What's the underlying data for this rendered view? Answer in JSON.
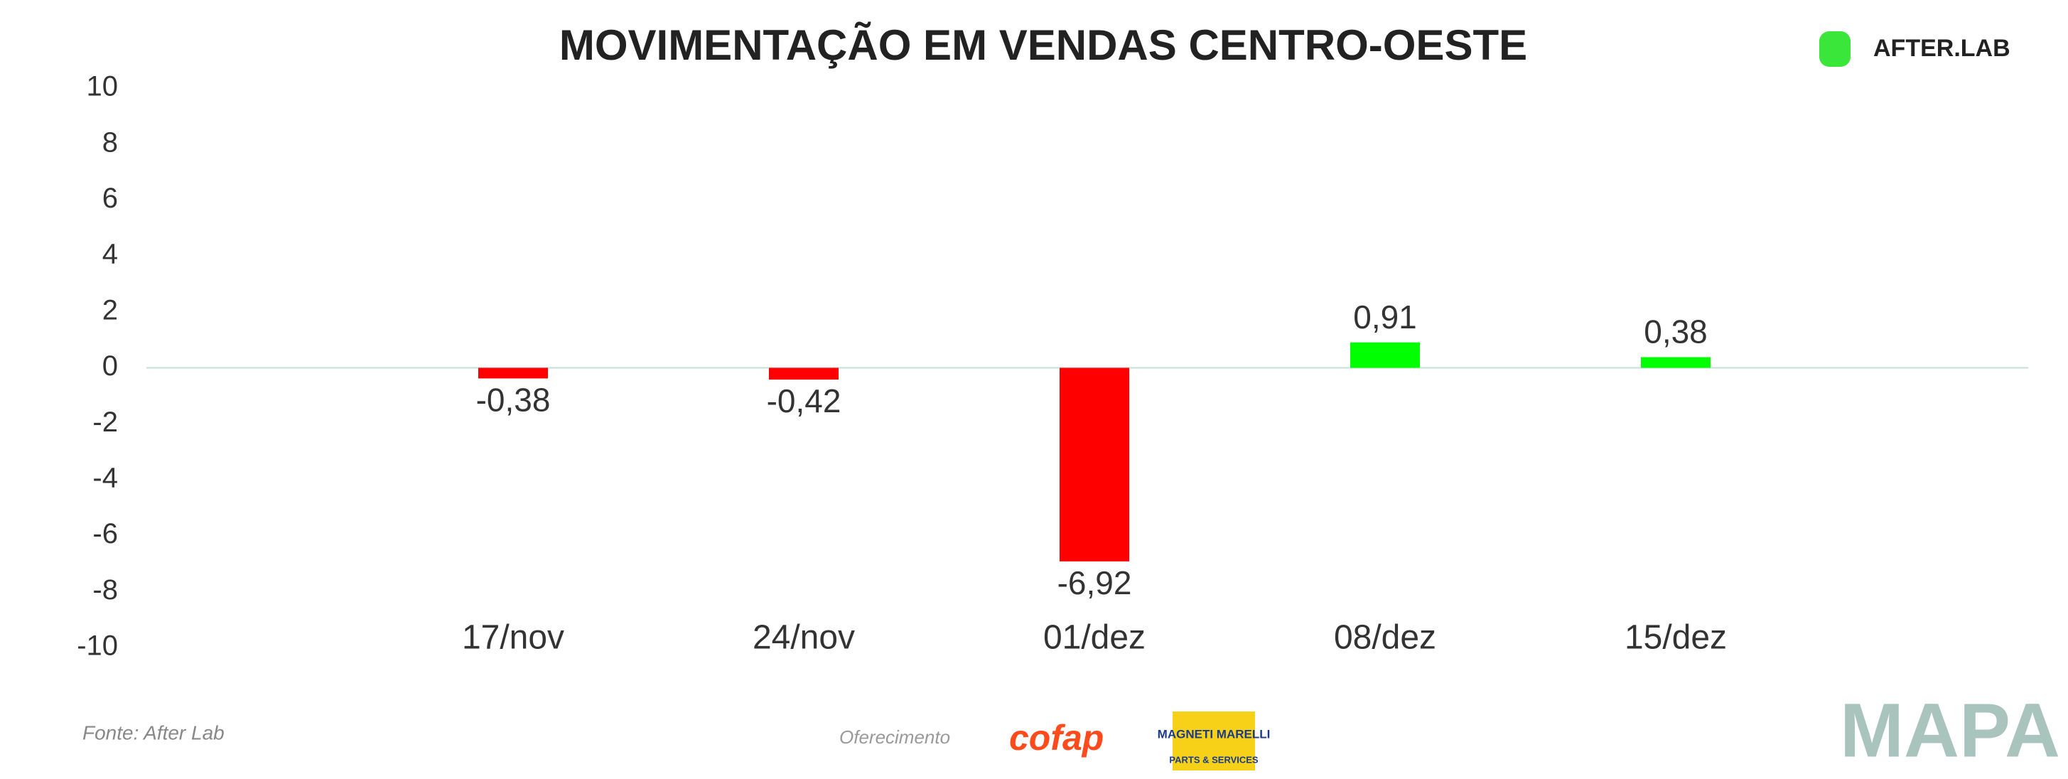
{
  "chart_data": {
    "type": "bar",
    "title": "MOVIMENTAÇÃO EM VENDAS CENTRO-OESTE",
    "categories": [
      "17/nov",
      "24/nov",
      "01/dez",
      "08/dez",
      "15/dez"
    ],
    "values": [
      -0.38,
      -0.42,
      -6.92,
      0.91,
      0.38
    ],
    "value_labels": [
      "-0,38",
      "-0,42",
      "-6,92",
      "0,91",
      "0,38"
    ],
    "positive_color": "#00ff00",
    "negative_color": "#ff0000",
    "ylim": [
      -10,
      10
    ],
    "yticks": [
      -10,
      -8,
      -6,
      -4,
      -2,
      0,
      2,
      4,
      6,
      8,
      10
    ],
    "source": "Fonte: After Lab",
    "sponsor_label": "Oferecimento",
    "brand": "AFTER.LAB",
    "sponsors": [
      "cofap",
      "MAGNETI MARELLI",
      "PARTS & SERVICES"
    ],
    "footer_brand": "MAPA"
  }
}
